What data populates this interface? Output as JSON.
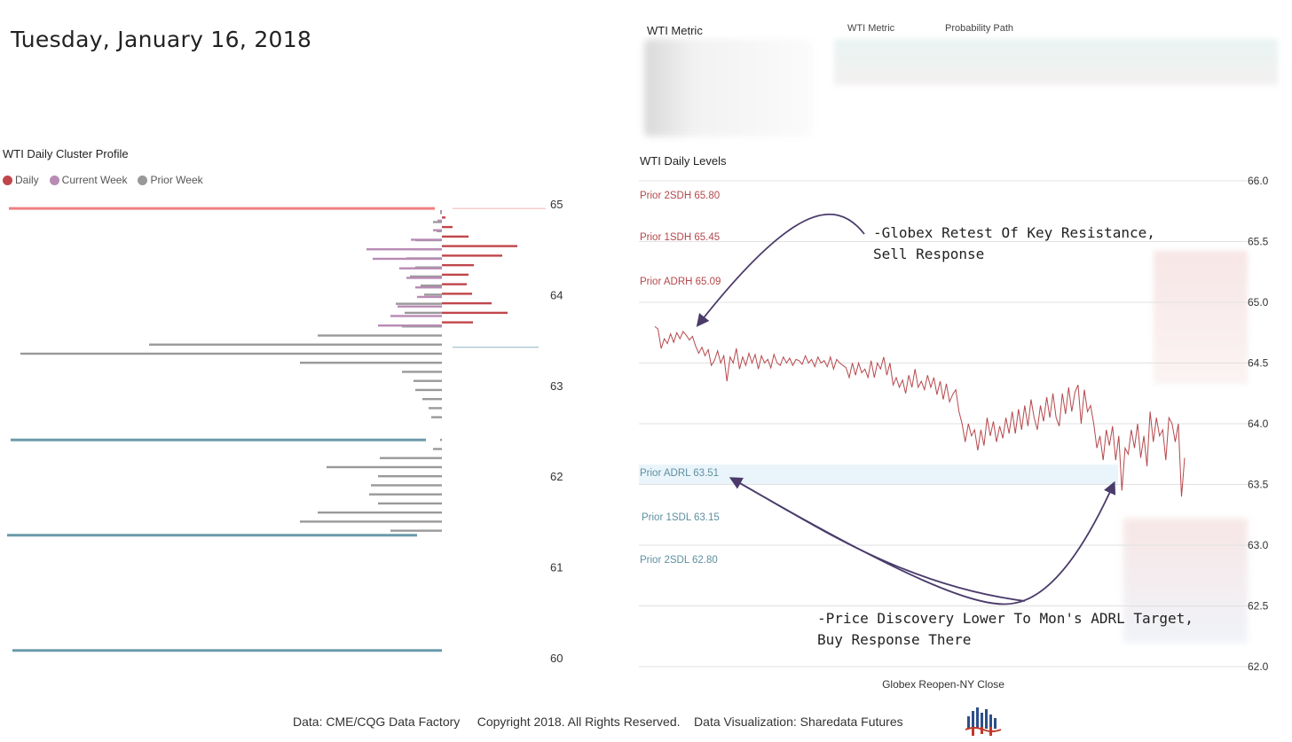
{
  "header": {
    "date": "Tuesday, January 16, 2018"
  },
  "cluster_profile": {
    "title": "WTI Daily Cluster Profile"
  },
  "legend": {
    "items": [
      {
        "label": "Daily",
        "color": "#c0464b"
      },
      {
        "label": "Current Week",
        "color": "#b88bb5"
      },
      {
        "label": "Prior Week",
        "color": "#999999"
      }
    ]
  },
  "metric_panel": {
    "title": "WTI Metric",
    "col1": "WTI Metric",
    "col2": "Probability Path"
  },
  "levels_chart": {
    "title": "WTI Daily Levels",
    "xlabel": "Globex Reopen-NY Close",
    "levels": [
      {
        "label": "Prior 2SDH 65.80",
        "value": 65.8,
        "color": "#b5484c"
      },
      {
        "label": "Prior 1SDH 65.45",
        "value": 65.45,
        "color": "#b5484c"
      },
      {
        "label": "Prior ADRH 65.09",
        "value": 65.09,
        "color": "#b5484c"
      },
      {
        "label": "Prior ADRL 63.51",
        "value": 63.51,
        "color": "#5e8fa1"
      },
      {
        "label": "Prior 1SDL 63.15",
        "value": 63.15,
        "color": "#5e8fa1"
      },
      {
        "label": "Prior 2SDL 62.80",
        "value": 62.8,
        "color": "#5e8fa1"
      }
    ],
    "annotations": [
      {
        "lines": [
          "-Globex Retest Of Key Resistance,",
          "Sell Response"
        ]
      },
      {
        "lines": [
          "-Price Discovery Lower To Mon's ADRL Target,",
          "Buy Response There"
        ]
      }
    ]
  },
  "footer": {
    "text": "Data: CME/CQG Data Factory     Copyright 2018. All Rights Reserved.    Data Visualization: Sharedata Futures"
  },
  "chart_data": [
    {
      "type": "bar",
      "title": "WTI Daily Cluster Profile",
      "orientation": "horizontal",
      "ylim": [
        60,
        65
      ],
      "yticks": [
        60,
        61,
        62,
        63,
        64,
        65
      ],
      "series": [
        {
          "name": "Prior Week",
          "color": "#999999",
          "levels": [
            64.9,
            64.8,
            64.7,
            64.6,
            64.5,
            64.4,
            64.3,
            64.2,
            64.1,
            64.0,
            63.9,
            63.8,
            63.65,
            63.55,
            63.45,
            63.35,
            63.25,
            63.15,
            63.05,
            62.95,
            62.85,
            62.75,
            62.65,
            62.4,
            62.3,
            62.2,
            62.1,
            62.0,
            61.9,
            61.8,
            61.7,
            61.6,
            61.5,
            61.4
          ],
          "values": [
            2,
            10,
            6,
            30,
            34,
            40,
            30,
            36,
            24,
            20,
            52,
            42,
            45,
            140,
            330,
            475,
            160,
            45,
            32,
            30,
            22,
            15,
            12,
            2,
            10,
            70,
            130,
            72,
            80,
            82,
            72,
            140,
            160,
            58
          ]
        },
        {
          "name": "Current Week",
          "color": "#b88bb5",
          "values": [
            2,
            5,
            10,
            35,
            85,
            78,
            48,
            40,
            30,
            28,
            50,
            58,
            72
          ]
        },
        {
          "name": "Daily",
          "color": "#c0464b",
          "values": [
            4,
            12,
            30,
            85,
            68,
            36,
            30,
            28,
            34,
            56,
            74,
            35
          ]
        }
      ],
      "reference_lines": [
        {
          "value": 64.95,
          "color": "#f08080"
        },
        {
          "value": 63.42,
          "color": "#8fb3c2"
        },
        {
          "value": 62.4,
          "color": "#6a9aaa"
        },
        {
          "value": 61.35,
          "color": "#6a9aaa"
        },
        {
          "value": 60.08,
          "color": "#6a9aaa"
        }
      ]
    },
    {
      "type": "line",
      "title": "WTI Daily Levels",
      "xlabel": "Globex Reopen-NY Close",
      "ylim": [
        62.0,
        66.0
      ],
      "yticks": [
        62.0,
        62.5,
        63.0,
        63.5,
        64.0,
        64.5,
        65.0,
        65.5,
        66.0
      ],
      "series": [
        {
          "name": "WTI",
          "color": "#b5484c",
          "values": [
            64.8,
            64.78,
            64.62,
            64.7,
            64.66,
            64.74,
            64.67,
            64.75,
            64.7,
            64.76,
            64.73,
            64.69,
            64.72,
            64.64,
            64.58,
            64.63,
            64.56,
            64.61,
            64.48,
            64.52,
            64.6,
            64.5,
            64.56,
            64.35,
            64.55,
            64.5,
            64.62,
            64.45,
            64.55,
            64.48,
            64.58,
            64.5,
            64.57,
            64.45,
            64.56,
            64.5,
            64.53,
            64.46,
            64.57,
            64.5,
            64.48,
            64.55,
            64.5,
            64.54,
            64.48,
            64.53,
            64.52,
            64.49,
            64.56,
            64.5,
            64.53,
            64.47,
            64.55,
            64.5,
            64.52,
            64.47,
            64.55,
            64.45,
            64.53,
            64.5,
            64.48,
            64.46,
            64.38,
            64.5,
            64.4,
            64.5,
            64.42,
            64.45,
            64.38,
            64.52,
            64.38,
            64.5,
            64.45,
            64.55,
            64.4,
            64.5,
            64.32,
            64.38,
            64.3,
            64.36,
            64.25,
            64.4,
            64.3,
            64.45,
            64.3,
            64.35,
            64.28,
            64.4,
            64.3,
            64.38,
            64.24,
            64.35,
            64.2,
            64.33,
            64.18,
            64.24,
            64.28,
            64.1,
            64.0,
            63.85,
            64.0,
            63.9,
            63.95,
            63.78,
            63.95,
            63.82,
            64.05,
            63.9,
            64.02,
            63.85,
            63.98,
            63.88,
            64.05,
            63.92,
            64.1,
            63.92,
            64.12,
            63.95,
            64.15,
            63.98,
            64.2,
            64.05,
            63.95,
            64.15,
            64.02,
            64.22,
            64.05,
            64.25,
            64.05,
            63.98,
            64.25,
            64.08,
            64.3,
            64.1,
            64.26,
            64.32,
            64.0,
            64.28,
            64.1,
            64.15,
            64.0,
            63.8,
            63.9,
            63.7,
            63.95,
            63.82,
            63.98,
            63.7,
            63.9,
            63.45,
            63.8,
            63.75,
            63.95,
            63.8,
            64.0,
            63.72,
            63.9,
            63.65,
            64.1,
            63.85,
            64.05,
            63.9,
            63.95,
            63.7,
            64.05,
            64.0,
            63.85,
            64.0,
            63.4,
            63.72
          ]
        }
      ],
      "levels": [
        65.8,
        65.45,
        65.09,
        63.51,
        63.15,
        62.8
      ]
    }
  ]
}
